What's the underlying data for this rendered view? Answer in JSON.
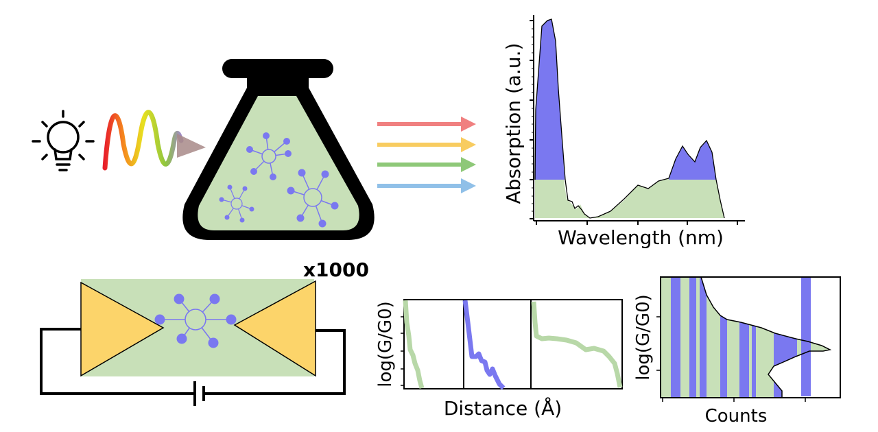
{
  "absorption_plot": {
    "xlabel": "Wavelength (nm)",
    "ylabel": "Absorption (a.u.)"
  },
  "junction": {
    "repeat_label": "x1000"
  },
  "traces_plot": {
    "xlabel": "Distance (Å)",
    "ylabel": "log(G/G0)"
  },
  "histogram_plot": {
    "xlabel": "Counts",
    "ylabel": "log(G/G0)"
  },
  "colors": {
    "solution_green": "#c8e0b8",
    "molecule_blue": "#7a78f0",
    "electrode_yellow": "#fcd46a",
    "trace_green": "#b8d8a8",
    "arrow_red": "#f08080",
    "arrow_yellow": "#f8cc60",
    "arrow_green": "#8ec878",
    "arrow_blue": "#90c0e8"
  },
  "icons": [
    "light-bulb-icon",
    "wave-icon",
    "flask-icon",
    "molecule-icon",
    "battery-icon"
  ]
}
